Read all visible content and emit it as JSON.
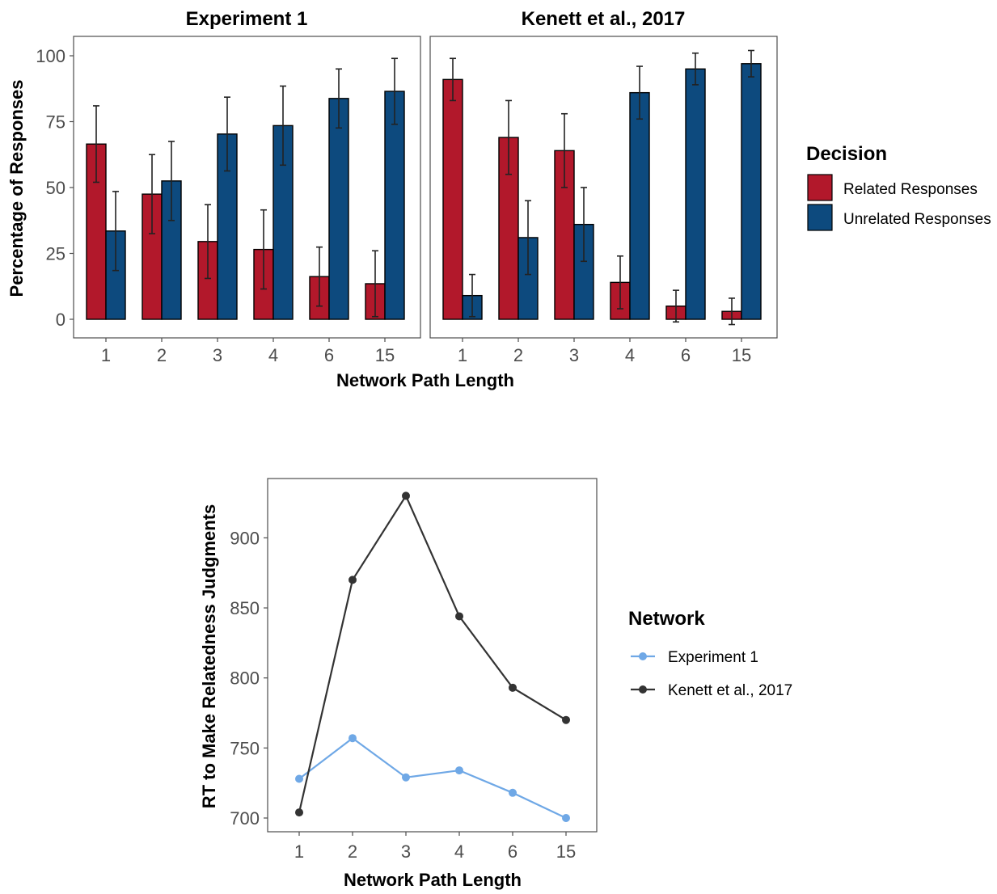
{
  "chart_data": [
    {
      "type": "bar",
      "ylabel": "Percentage of Responses",
      "xlabel": "Network Path Length",
      "categories": [
        "1",
        "2",
        "3",
        "4",
        "6",
        "15"
      ],
      "ylim": [
        0,
        100
      ],
      "yticks": [
        0,
        25,
        50,
        75,
        100
      ],
      "grid": false,
      "legend": {
        "title": "Decision",
        "placement": "right",
        "entries": [
          "Related Responses",
          "Unrelated Responses"
        ]
      },
      "series_colors": {
        "Related Responses": "#b2182b",
        "Unrelated Responses": "#0d4a7e"
      },
      "panels": [
        {
          "title": "Experiment 1",
          "series": [
            {
              "name": "Related Responses",
              "values": [
                66.5,
                47.5,
                29.5,
                26.5,
                16.2,
                13.5
              ],
              "error": [
                14.5,
                15.0,
                14.0,
                15.0,
                11.2,
                12.5
              ]
            },
            {
              "name": "Unrelated Responses",
              "values": [
                33.5,
                52.5,
                70.3,
                73.5,
                83.8,
                86.5
              ],
              "error": [
                15.0,
                15.0,
                14.0,
                15.0,
                11.2,
                12.5
              ]
            }
          ]
        },
        {
          "title": "Kenett et al., 2017",
          "series": [
            {
              "name": "Related Responses",
              "values": [
                91.0,
                69.0,
                64.0,
                14.0,
                5.0,
                3.0
              ],
              "error": [
                8.0,
                14.0,
                14.0,
                10.0,
                6.0,
                5.0
              ]
            },
            {
              "name": "Unrelated Responses",
              "values": [
                9.0,
                31.0,
                36.0,
                86.0,
                95.0,
                97.0
              ],
              "error": [
                8.0,
                14.0,
                14.0,
                10.0,
                6.0,
                5.0
              ]
            }
          ]
        }
      ]
    },
    {
      "type": "line",
      "ylabel": "RT to Make Relatedness Judgments",
      "xlabel": "Network Path Length",
      "categories": [
        "1",
        "2",
        "3",
        "4",
        "6",
        "15"
      ],
      "ylim": [
        690,
        942
      ],
      "yticks": [
        700,
        750,
        800,
        850,
        900
      ],
      "grid": false,
      "legend": {
        "title": "Network",
        "placement": "right",
        "entries": [
          "Experiment 1",
          "Kenett et al., 2017"
        ]
      },
      "series": [
        {
          "name": "Experiment 1",
          "color": "#6fa8e6",
          "values": [
            728,
            757,
            729,
            734,
            718,
            700
          ]
        },
        {
          "name": "Kenett et al., 2017",
          "color": "#333333",
          "values": [
            704,
            870,
            930,
            844,
            793,
            770
          ]
        }
      ]
    }
  ]
}
